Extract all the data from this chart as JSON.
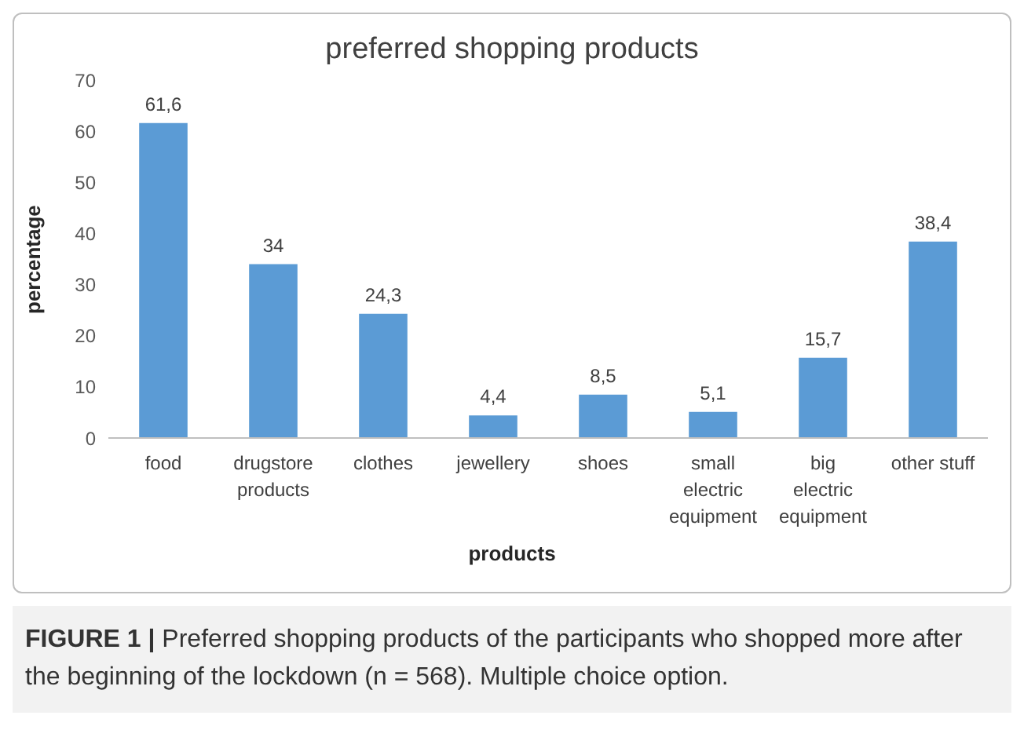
{
  "chart_data": {
    "type": "bar",
    "title": "preferred shopping products",
    "xlabel": "products",
    "ylabel": "percentage",
    "categories": [
      "food",
      "drugstore products",
      "clothes",
      "jewellery",
      "shoes",
      "small electric equipment",
      "big electric equipment",
      "other stuff"
    ],
    "values": [
      61.6,
      34,
      24.3,
      4.4,
      8.5,
      5.1,
      15.7,
      38.4
    ],
    "value_labels": [
      "61,6",
      "34",
      "24,3",
      "4,4",
      "8,5",
      "5,1",
      "15,7",
      "38,4"
    ],
    "color": "#5b9bd5",
    "ylim": [
      0,
      70
    ],
    "yticks": [
      0,
      10,
      20,
      30,
      40,
      50,
      60,
      70
    ],
    "grid": false,
    "legend": false,
    "annotations": [
      "FIGURE 1 | Preferred shopping products of the participants who shopped more after the beginning of the lockdown (n = 568). Multiple choice option."
    ]
  }
}
